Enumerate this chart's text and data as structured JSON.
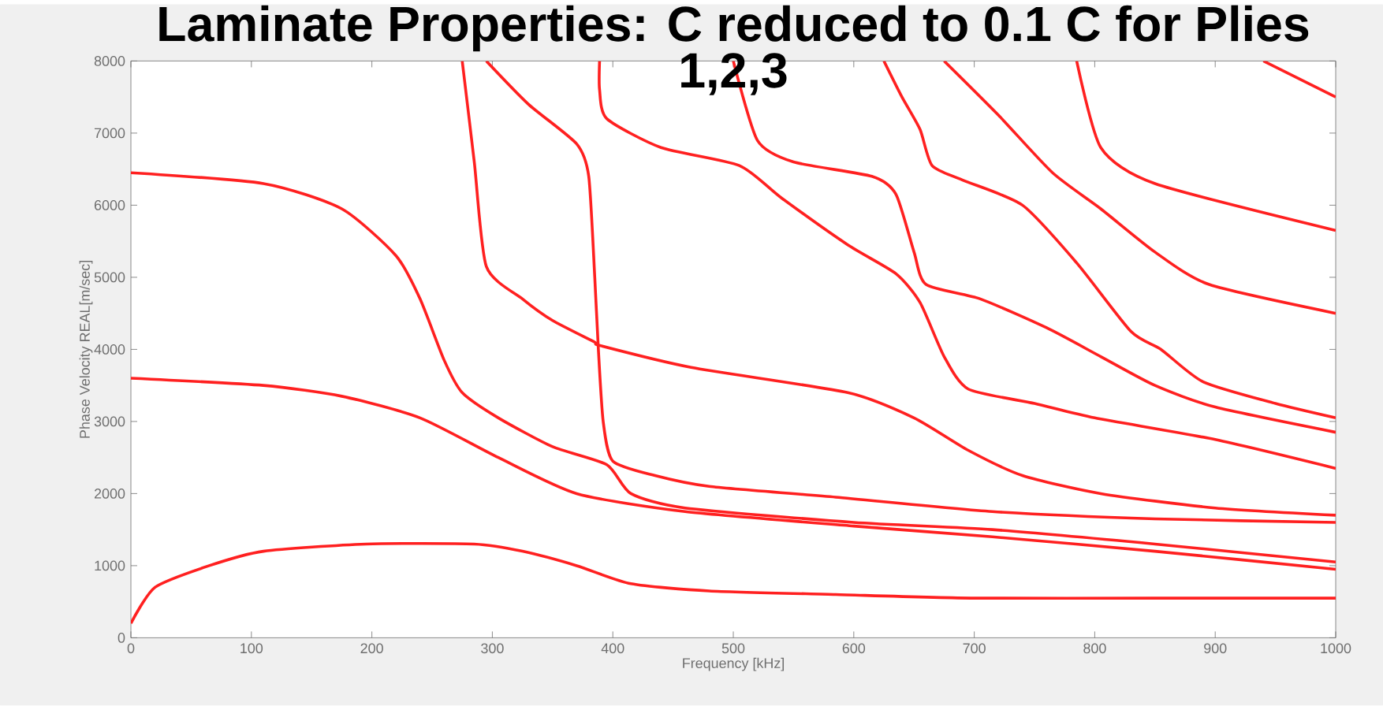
{
  "chart_data": {
    "type": "line",
    "title": "Laminate Properties: C reduced to 0.1 C for Plies 1,2,3",
    "xlabel": "Frequency [kHz]",
    "ylabel": "Phase Velocity REAL[m/sec]",
    "xlim": [
      0,
      1000
    ],
    "ylim": [
      0,
      8000
    ],
    "xticks": [
      0,
      100,
      200,
      300,
      400,
      500,
      600,
      700,
      800,
      900,
      1000
    ],
    "yticks": [
      0,
      1000,
      2000,
      3000,
      4000,
      5000,
      6000,
      7000,
      8000
    ],
    "line_style": "solid",
    "series": [
      {
        "color": "#ff2020",
        "x": [
          0,
          20,
          65,
          110,
          195,
          285,
          325,
          370,
          415,
          480,
          585,
          700,
          850,
          1000
        ],
        "values": [
          200,
          700,
          1000,
          1200,
          1300,
          1300,
          1200,
          1000,
          750,
          650,
          600,
          550,
          550,
          550
        ]
      },
      {
        "color": "#ff2020",
        "x": [
          0,
          110,
          175,
          240,
          305,
          370,
          460,
          600,
          715,
          850,
          1000
        ],
        "values": [
          3600,
          3500,
          3350,
          3050,
          2500,
          2000,
          1750,
          1550,
          1400,
          1200,
          950
        ]
      },
      {
        "color": "#ff2020",
        "x": [
          0,
          110,
          175,
          220,
          240,
          260,
          275,
          305,
          350,
          395,
          415,
          460,
          600,
          715,
          850,
          1000
        ],
        "values": [
          6450,
          6300,
          5950,
          5300,
          4700,
          3850,
          3400,
          3050,
          2650,
          2400,
          2000,
          1800,
          1600,
          1500,
          1300,
          1050
        ]
      },
      {
        "color": "#ff2020",
        "x": [
          275,
          285,
          295,
          325,
          350,
          385,
          390,
          465,
          595,
          650,
          695,
          740,
          805,
          900,
          1000
        ],
        "values": [
          8000,
          6600,
          5150,
          4700,
          4400,
          4100,
          4050,
          3750,
          3400,
          3050,
          2600,
          2250,
          2000,
          1800,
          1700
        ]
      },
      {
        "color": "#ff2020",
        "x": [
          295,
          330,
          370,
          380,
          385,
          388,
          392,
          400,
          435,
          480,
          585,
          715,
          850,
          1000
        ],
        "values": [
          8000,
          7400,
          6850,
          6400,
          5000,
          4000,
          3000,
          2450,
          2250,
          2100,
          1950,
          1750,
          1650,
          1600
        ]
      },
      {
        "color": "#ff2020",
        "x": [
          389,
          389,
          395,
          440,
          505,
          540,
          595,
          635,
          655,
          675,
          695,
          750,
          800,
          900,
          1000
        ],
        "values": [
          8000,
          7600,
          7200,
          6800,
          6550,
          6100,
          5450,
          5050,
          4650,
          3900,
          3450,
          3250,
          3050,
          2750,
          2350
        ]
      },
      {
        "color": "#ff2020",
        "x": [
          500,
          520,
          550,
          615,
          635,
          650,
          660,
          705,
          760,
          805,
          850,
          900,
          1000
        ],
        "values": [
          8000,
          6900,
          6600,
          6400,
          6150,
          5350,
          4900,
          4700,
          4300,
          3900,
          3500,
          3200,
          2850
        ]
      },
      {
        "color": "#ff2020",
        "x": [
          625,
          640,
          655,
          665,
          690,
          740,
          785,
          830,
          855,
          890,
          950,
          1000
        ],
        "values": [
          8000,
          7500,
          7050,
          6550,
          6350,
          6000,
          5200,
          4250,
          4000,
          3550,
          3250,
          3050
        ]
      },
      {
        "color": "#ff2020",
        "x": [
          675,
          720,
          765,
          805,
          850,
          895,
          1000
        ],
        "values": [
          8000,
          7250,
          6450,
          5950,
          5350,
          4900,
          4500
        ]
      },
      {
        "color": "#ff2020",
        "x": [
          785,
          805,
          850,
          1000
        ],
        "values": [
          8000,
          6800,
          6300,
          5650
        ]
      },
      {
        "color": "#ff2020",
        "x": [
          940,
          1000
        ],
        "values": [
          8000,
          7500
        ]
      }
    ]
  }
}
